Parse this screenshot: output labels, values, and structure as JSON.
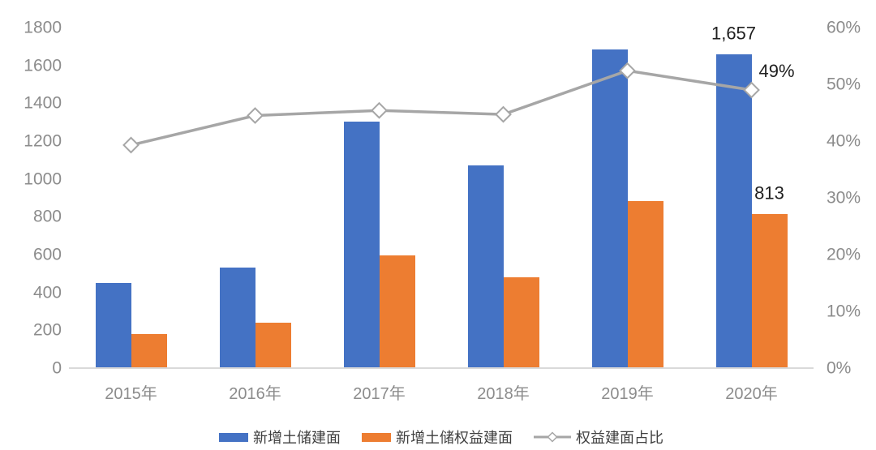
{
  "chart_data": {
    "type": "bar",
    "title": "",
    "xlabel": "",
    "ylabel_left": "",
    "ylabel_right": "",
    "categories": [
      "2015年",
      "2016年",
      "2017年",
      "2018年",
      "2019年",
      "2020年"
    ],
    "series": [
      {
        "name": "新增土储建面",
        "type": "bar",
        "axis": "left",
        "color": "#4472C4",
        "values": [
          450,
          530,
          1305,
          1070,
          1685,
          1657
        ]
      },
      {
        "name": "新增土储权益建面",
        "type": "bar",
        "axis": "left",
        "color": "#ED7D31",
        "values": [
          178,
          240,
          595,
          480,
          885,
          813
        ]
      },
      {
        "name": "权益建面占比",
        "type": "line",
        "axis": "right",
        "color": "#A6A6A6",
        "marker": "diamond-white",
        "values": [
          39.3,
          44.5,
          45.4,
          44.7,
          52.4,
          49.0
        ]
      }
    ],
    "data_labels": [
      {
        "series": 0,
        "index": 5,
        "text": "1,657"
      },
      {
        "series": 1,
        "index": 5,
        "text": "813"
      },
      {
        "series": 2,
        "index": 5,
        "text": "49%"
      }
    ],
    "left_axis": {
      "min": 0,
      "max": 1800,
      "tick_step": 200,
      "ticks": [
        "1800",
        "1600",
        "1400",
        "1200",
        "1000",
        "800",
        "600",
        "400",
        "200",
        "0"
      ]
    },
    "right_axis": {
      "min": 0,
      "max": 60,
      "tick_step": 10,
      "ticks": [
        "60%",
        "50%",
        "40%",
        "30%",
        "20%",
        "10%",
        "0%"
      ]
    },
    "grid": false,
    "legend_position": "bottom",
    "colors": {
      "axis_text": "#8C8C8C",
      "axis_line": "#D9D9D9",
      "data_label": "#1F1F1F",
      "legend_text": "#404040",
      "background": "#FFFFFF"
    }
  }
}
